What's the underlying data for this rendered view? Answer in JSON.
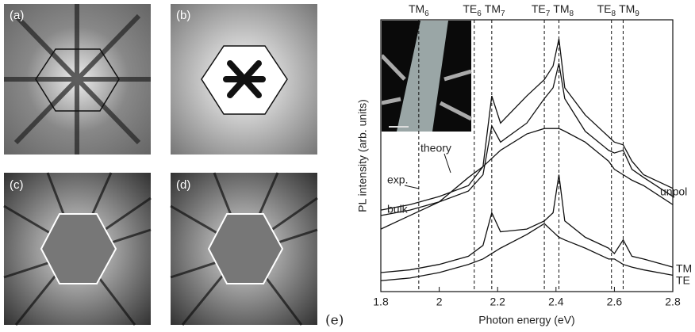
{
  "panels": [
    "(a)",
    "(b)",
    "(c)",
    "(d)"
  ],
  "panel_e": "(e)",
  "chart_data": {
    "type": "line",
    "xlabel": "Photon energy (eV)",
    "ylabel": "PL intensity (arb. units)",
    "xlim": [
      1.8,
      2.8
    ],
    "xticks": [
      1.8,
      2.0,
      2.2,
      2.4,
      2.6,
      2.8
    ],
    "ylim": [
      0,
      100
    ],
    "x": [
      1.8,
      1.9,
      2.0,
      2.1,
      2.15,
      2.18,
      2.21,
      2.3,
      2.36,
      2.39,
      2.41,
      2.43,
      2.5,
      2.58,
      2.6,
      2.63,
      2.66,
      2.7,
      2.8
    ],
    "series": [
      {
        "name": "exp.",
        "color": "#111111",
        "values": [
          30,
          32,
          35,
          39,
          46,
          72,
          62,
          72,
          78,
          83,
          93,
          75,
          65,
          57,
          55,
          54,
          48,
          43,
          38
        ]
      },
      {
        "name": "theory",
        "color": "#111111",
        "values": [
          28,
          30,
          33,
          37,
          43,
          61,
          55,
          62,
          71,
          75,
          84,
          71,
          59,
          52,
          51,
          52,
          45,
          42,
          35
        ]
      },
      {
        "name": "bulk",
        "color": "#111111",
        "values": [
          23,
          28,
          33,
          42,
          46,
          49,
          52,
          58,
          60,
          60,
          60,
          59,
          55,
          48,
          45,
          43,
          41,
          39,
          32
        ]
      },
      {
        "name": "TM",
        "color": "#111111",
        "values": [
          7,
          8,
          10,
          13,
          17,
          29,
          22,
          23,
          26,
          29,
          43,
          26,
          20,
          16,
          14,
          19,
          13,
          12,
          9
        ]
      },
      {
        "name": "TE",
        "color": "#111111",
        "values": [
          4,
          5,
          7,
          10,
          12,
          14,
          16,
          21,
          25,
          22,
          20,
          19,
          16,
          12,
          12,
          10,
          9,
          8,
          6
        ]
      }
    ],
    "annotation": "unpol",
    "markers": [
      {
        "mode": "TM",
        "index": "6",
        "x": 1.93
      },
      {
        "mode": "TE",
        "index": "6",
        "x": 2.12
      },
      {
        "mode": "TM",
        "index": "7",
        "x": 2.18
      },
      {
        "mode": "TE",
        "index": "7",
        "x": 2.36
      },
      {
        "mode": "TM",
        "index": "8",
        "x": 2.41
      },
      {
        "mode": "TE",
        "index": "8",
        "x": 2.59
      },
      {
        "mode": "TM",
        "index": "9",
        "x": 2.63
      }
    ]
  }
}
